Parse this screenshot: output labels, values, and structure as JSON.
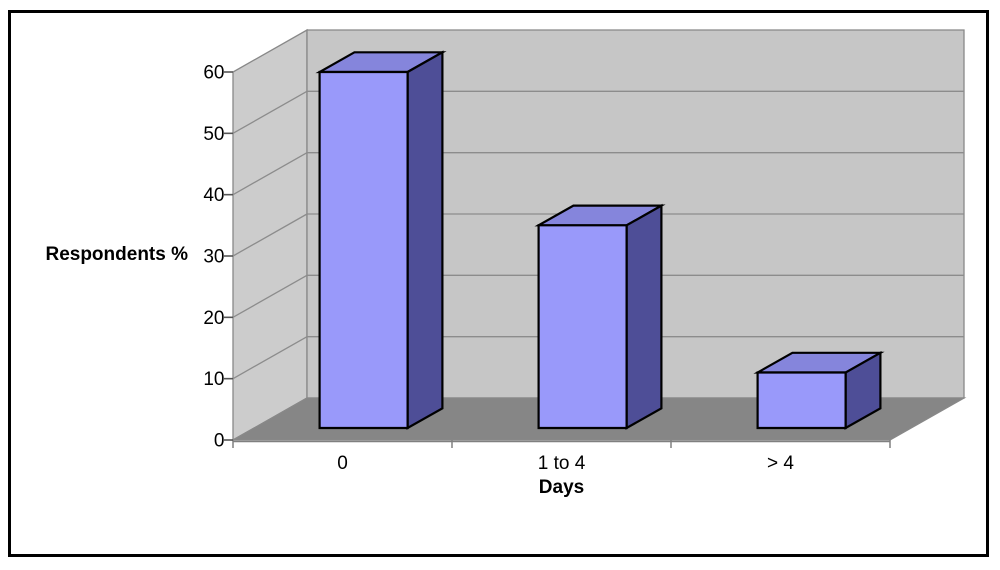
{
  "figure": {
    "background": "#FFFFFF",
    "border_color": "#000000"
  },
  "chart_data": {
    "type": "bar",
    "style": "3d-column",
    "title": "",
    "xlabel": "Days",
    "ylabel": "Respondents %",
    "categories": [
      "0",
      "1 to 4",
      "> 4"
    ],
    "values": [
      60,
      35,
      11
    ],
    "series": [
      {
        "name": "Respondents %",
        "values": [
          60,
          35,
          11
        ]
      }
    ],
    "ylim": [
      0,
      60
    ],
    "ytick_step": 10,
    "yticks": [
      0,
      10,
      20,
      30,
      40,
      50,
      60
    ],
    "grid": true,
    "legend": false,
    "colors": {
      "bar_front": "#9999FA",
      "bar_top": "#8585DC",
      "bar_side": "#4E4E97",
      "back_wall": "#C6C6C6",
      "side_wall": "#CCCCCC",
      "floor": "#868686",
      "gridline": "#8C8C8C",
      "wall_edge": "#888888",
      "axis": "#808080",
      "tick": "#555555",
      "outline": "#000000",
      "text": "#000000"
    }
  }
}
